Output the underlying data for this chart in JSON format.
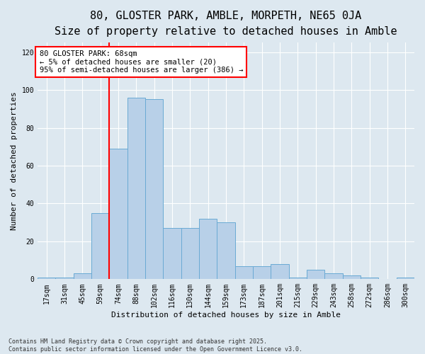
{
  "title1": "80, GLOSTER PARK, AMBLE, MORPETH, NE65 0JA",
  "title2": "Size of property relative to detached houses in Amble",
  "xlabel": "Distribution of detached houses by size in Amble",
  "ylabel": "Number of detached properties",
  "categories": [
    "17sqm",
    "31sqm",
    "45sqm",
    "59sqm",
    "74sqm",
    "88sqm",
    "102sqm",
    "116sqm",
    "130sqm",
    "144sqm",
    "159sqm",
    "173sqm",
    "187sqm",
    "201sqm",
    "215sqm",
    "229sqm",
    "243sqm",
    "258sqm",
    "272sqm",
    "286sqm",
    "300sqm"
  ],
  "values": [
    1,
    1,
    3,
    35,
    69,
    96,
    95,
    27,
    27,
    32,
    30,
    7,
    7,
    8,
    1,
    5,
    3,
    2,
    1,
    0,
    1
  ],
  "bar_color": "#b8d0e8",
  "bar_edge_color": "#6aaad4",
  "vline_index": 3,
  "annotation_title": "80 GLOSTER PARK: 68sqm",
  "annotation_line1": "← 5% of detached houses are smaller (20)",
  "annotation_line2": "95% of semi-detached houses are larger (386) →",
  "annotation_box_color": "white",
  "annotation_box_edge_color": "red",
  "vline_color": "red",
  "ylim": [
    0,
    125
  ],
  "yticks": [
    0,
    20,
    40,
    60,
    80,
    100,
    120
  ],
  "background_color": "#dde8f0",
  "footer": "Contains HM Land Registry data © Crown copyright and database right 2025.\nContains public sector information licensed under the Open Government Licence v3.0.",
  "title_fontsize": 11,
  "subtitle_fontsize": 9.5,
  "axis_label_fontsize": 8,
  "tick_fontsize": 7,
  "annotation_fontsize": 7.5
}
